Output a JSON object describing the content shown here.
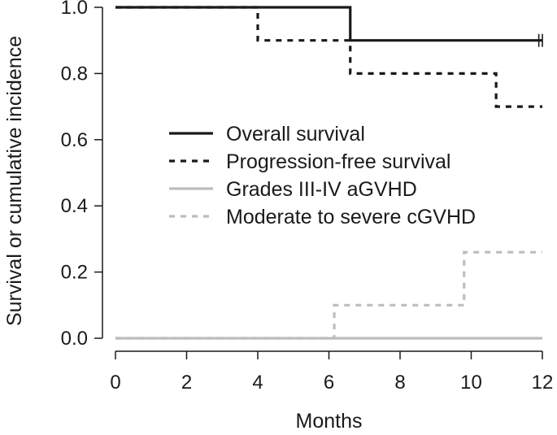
{
  "chart_data": {
    "type": "line",
    "title": "",
    "xlabel": "Months",
    "ylabel": "Survival or cumulative incidence",
    "xlim": [
      0,
      12
    ],
    "ylim": [
      0,
      1
    ],
    "x_ticks": [
      "0",
      "2",
      "4",
      "6",
      "8",
      "10",
      "12"
    ],
    "y_ticks": [
      "0.0",
      "0.2",
      "0.4",
      "0.6",
      "0.8",
      "1.0"
    ],
    "step": true,
    "grid": false,
    "legend_position": "center-right",
    "series": [
      {
        "name": "Overall survival",
        "color": "#1a1a1a",
        "style": "solid",
        "x": [
          0,
          6.6,
          12
        ],
        "y": [
          1.0,
          0.9,
          0.9
        ],
        "censor_marks": [
          11.9,
          12
        ]
      },
      {
        "name": "Progression-free survival",
        "color": "#1a1a1a",
        "style": "dashed",
        "x": [
          0,
          4.0,
          6.6,
          10.7,
          12
        ],
        "y": [
          1.0,
          0.9,
          0.8,
          0.7,
          0.7
        ],
        "censor_marks": []
      },
      {
        "name": "Grades III-IV aGVHD",
        "color": "#bdbdbd",
        "style": "solid",
        "x": [
          0,
          12
        ],
        "y": [
          0.0,
          0.0
        ],
        "censor_marks": []
      },
      {
        "name": "Moderate to severe cGVHD",
        "color": "#bdbdbd",
        "style": "dashed",
        "x": [
          0,
          6.15,
          9.8,
          12
        ],
        "y": [
          0.0,
          0.1,
          0.26,
          0.26
        ],
        "censor_marks": []
      }
    ]
  }
}
